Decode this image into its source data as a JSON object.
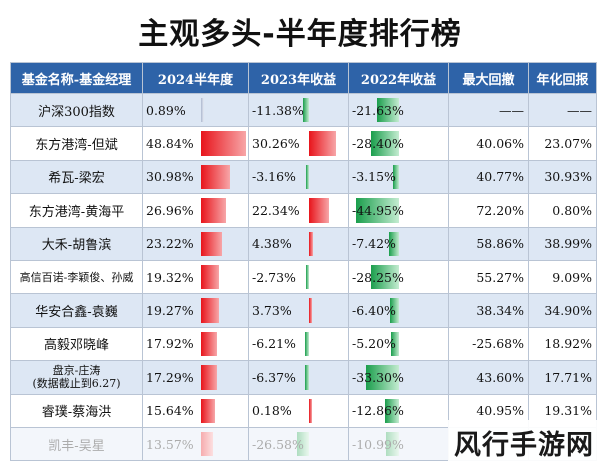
{
  "title": "主观多头-半年度排行榜",
  "watermark": "风行手游网",
  "headers": [
    "基金名称-基金经理",
    "2024半年度",
    "2023年收益",
    "2022年收益",
    "最大回撤",
    "年化回报"
  ],
  "colors": {
    "header_bg": "#2e63a8",
    "positive": "#e8141b",
    "negative": "#1a9e4c"
  },
  "rows": [
    {
      "name": "沪深300指数",
      "h2024": "0.89%",
      "y2023": "-11.38%",
      "y2022": "-21.63%",
      "drawdown": "——",
      "annual": "——",
      "v2024": 0.89,
      "v2023": -11.38,
      "v2022": -21.63
    },
    {
      "name": "东方港湾-但斌",
      "h2024": "48.84%",
      "y2023": "30.26%",
      "y2022": "-28.40%",
      "drawdown": "40.06%",
      "annual": "23.07%",
      "v2024": 48.84,
      "v2023": 30.26,
      "v2022": -28.4
    },
    {
      "name": "希瓦-梁宏",
      "h2024": "30.98%",
      "y2023": "-3.16%",
      "y2022": "-3.15%",
      "drawdown": "40.77%",
      "annual": "30.93%",
      "v2024": 30.98,
      "v2023": -3.16,
      "v2022": -3.15
    },
    {
      "name": "东方港湾-黄海平",
      "h2024": "26.96%",
      "y2023": "22.34%",
      "y2022": "-44.95%",
      "drawdown": "72.20%",
      "annual": "0.80%",
      "v2024": 26.96,
      "v2023": 22.34,
      "v2022": -44.95
    },
    {
      "name": "大禾-胡鲁滨",
      "h2024": "23.22%",
      "y2023": "4.38%",
      "y2022": "-7.42%",
      "drawdown": "58.86%",
      "annual": "38.99%",
      "v2024": 23.22,
      "v2023": 4.38,
      "v2022": -7.42
    },
    {
      "name": "高信百诺-李颖俊、孙威",
      "h2024": "19.32%",
      "y2023": "-2.73%",
      "y2022": "-28.25%",
      "drawdown": "55.27%",
      "annual": "9.09%",
      "v2024": 19.32,
      "v2023": -2.73,
      "v2022": -28.25
    },
    {
      "name": "华安合鑫-袁巍",
      "h2024": "19.27%",
      "y2023": "3.73%",
      "y2022": "-6.40%",
      "drawdown": "38.34%",
      "annual": "34.90%",
      "v2024": 19.27,
      "v2023": 3.73,
      "v2022": -6.4
    },
    {
      "name": "高毅邓晓峰",
      "h2024": "17.92%",
      "y2023": "-6.21%",
      "y2022": "-5.20%",
      "drawdown": "-25.68%",
      "annual": "18.92%",
      "v2024": 17.92,
      "v2023": -6.21,
      "v2022": -5.2
    },
    {
      "name": "盘京-庄涛",
      "note": "(数据截止到6.27)",
      "h2024": "17.29%",
      "y2023": "-6.37%",
      "y2022": "-33.30%",
      "drawdown": "43.60%",
      "annual": "17.71%",
      "v2024": 17.29,
      "v2023": -6.37,
      "v2022": -33.3
    },
    {
      "name": "睿璞-蔡海洪",
      "h2024": "15.64%",
      "y2023": "0.18%",
      "y2022": "-12.86%",
      "drawdown": "40.95%",
      "annual": "19.31%",
      "v2024": 15.64,
      "v2023": 0.18,
      "v2022": -12.86
    },
    {
      "name": "凯丰-吴星",
      "h2024": "13.57%",
      "y2023": "-26.58%",
      "y2022": "-10.99%",
      "drawdown": "",
      "annual": "",
      "v2024": 13.57,
      "v2023": -26.58,
      "v2022": -10.99
    }
  ]
}
